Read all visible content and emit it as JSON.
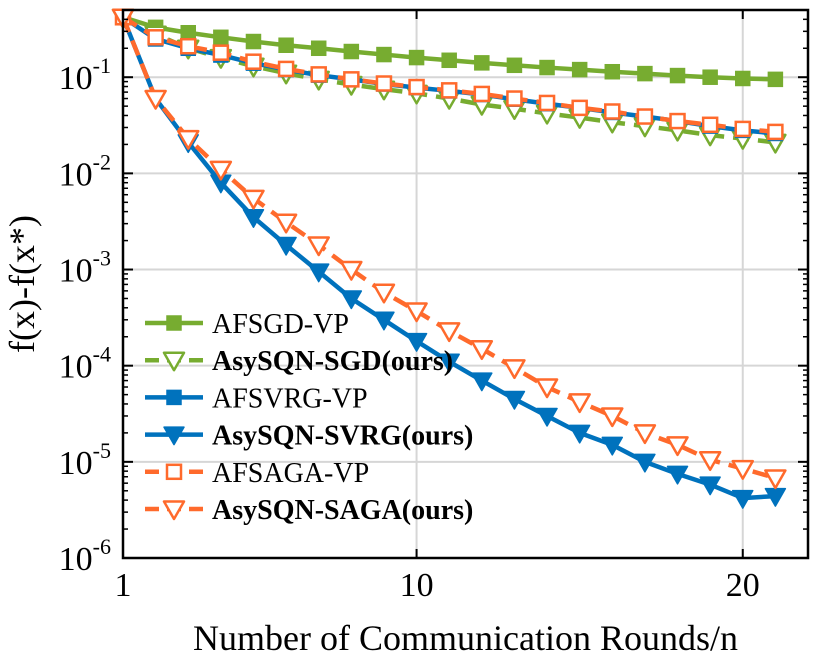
{
  "chart_data": {
    "type": "line",
    "title": "",
    "xlabel": "Number of Communication Rounds/n",
    "ylabel": "f(x)-f(x*)",
    "xlim": [
      1,
      22
    ],
    "ylim": [
      1e-06,
      0.5
    ],
    "yscale": "log",
    "grid": true,
    "legend_position": "bottom-left",
    "x_ticks": [
      {
        "value": 1,
        "label": "1"
      },
      {
        "value": 10,
        "label": "10"
      },
      {
        "value": 20,
        "label": "20"
      }
    ],
    "y_ticks": [
      {
        "value": 0.1,
        "base": "10",
        "exp": "-1"
      },
      {
        "value": 0.01,
        "base": "10",
        "exp": "-2"
      },
      {
        "value": 0.001,
        "base": "10",
        "exp": "-3"
      },
      {
        "value": 0.0001,
        "base": "10",
        "exp": "-4"
      },
      {
        "value": 1e-05,
        "base": "10",
        "exp": "-5"
      },
      {
        "value": 1e-06,
        "base": "10",
        "exp": "-6"
      }
    ],
    "x": [
      1,
      2,
      3,
      4,
      5,
      6,
      7,
      8,
      9,
      10,
      11,
      12,
      13,
      14,
      15,
      16,
      17,
      18,
      19,
      20,
      21
    ],
    "series": [
      {
        "name": "AFSGD-VP",
        "bold": false,
        "color": "#77ac30",
        "line_style": "solid",
        "marker": "square-filled",
        "values": [
          0.42,
          0.33,
          0.29,
          0.26,
          0.235,
          0.215,
          0.2,
          0.185,
          0.172,
          0.16,
          0.15,
          0.141,
          0.133,
          0.126,
          0.12,
          0.114,
          0.109,
          0.104,
          0.1,
          0.097,
          0.095
        ]
      },
      {
        "name": "AsySQN-SGD(ours)",
        "bold": true,
        "color": "#77ac30",
        "line_style": "dashed",
        "marker": "triangle-down-hollow",
        "values": [
          0.42,
          0.28,
          0.2,
          0.16,
          0.13,
          0.11,
          0.095,
          0.084,
          0.075,
          0.068,
          0.06,
          0.052,
          0.047,
          0.042,
          0.038,
          0.034,
          0.031,
          0.028,
          0.025,
          0.023,
          0.021
        ]
      },
      {
        "name": "AFSVRG-VP",
        "bold": false,
        "color": "#0072bd",
        "line_style": "solid",
        "marker": "square-filled",
        "values": [
          0.42,
          0.25,
          0.2,
          0.17,
          0.14,
          0.12,
          0.105,
          0.095,
          0.085,
          0.078,
          0.072,
          0.066,
          0.059,
          0.053,
          0.048,
          0.043,
          0.039,
          0.035,
          0.031,
          0.028,
          0.026
        ]
      },
      {
        "name": "AsySQN-SVRG(ours)",
        "bold": true,
        "color": "#0072bd",
        "line_style": "solid",
        "marker": "triangle-down-filled",
        "values": [
          0.42,
          0.06,
          0.021,
          0.008,
          0.0035,
          0.0018,
          0.00095,
          0.0005,
          0.0003,
          0.00018,
          0.00011,
          7e-05,
          4.5e-05,
          3e-05,
          2e-05,
          1.5e-05,
          1e-05,
          7.5e-06,
          5.8e-06,
          4.2e-06,
          4.4e-06
        ]
      },
      {
        "name": "AFSAGA-VP",
        "bold": false,
        "color": "#ff6a2c",
        "line_style": "dashed",
        "marker": "square-hollow",
        "values": [
          0.42,
          0.26,
          0.21,
          0.18,
          0.145,
          0.122,
          0.107,
          0.095,
          0.086,
          0.079,
          0.073,
          0.067,
          0.06,
          0.054,
          0.048,
          0.044,
          0.039,
          0.035,
          0.032,
          0.029,
          0.027
        ]
      },
      {
        "name": "AsySQN-SAGA(ours)",
        "bold": true,
        "color": "#ff6a2c",
        "line_style": "dashed",
        "marker": "triangle-down-hollow",
        "values": [
          0.42,
          0.06,
          0.023,
          0.011,
          0.0055,
          0.0031,
          0.0018,
          0.001,
          0.00058,
          0.00037,
          0.00023,
          0.00015,
          9.5e-05,
          6e-05,
          4.2e-05,
          3e-05,
          2e-05,
          1.5e-05,
          1.05e-05,
          8.5e-06,
          6.8e-06
        ]
      }
    ]
  }
}
